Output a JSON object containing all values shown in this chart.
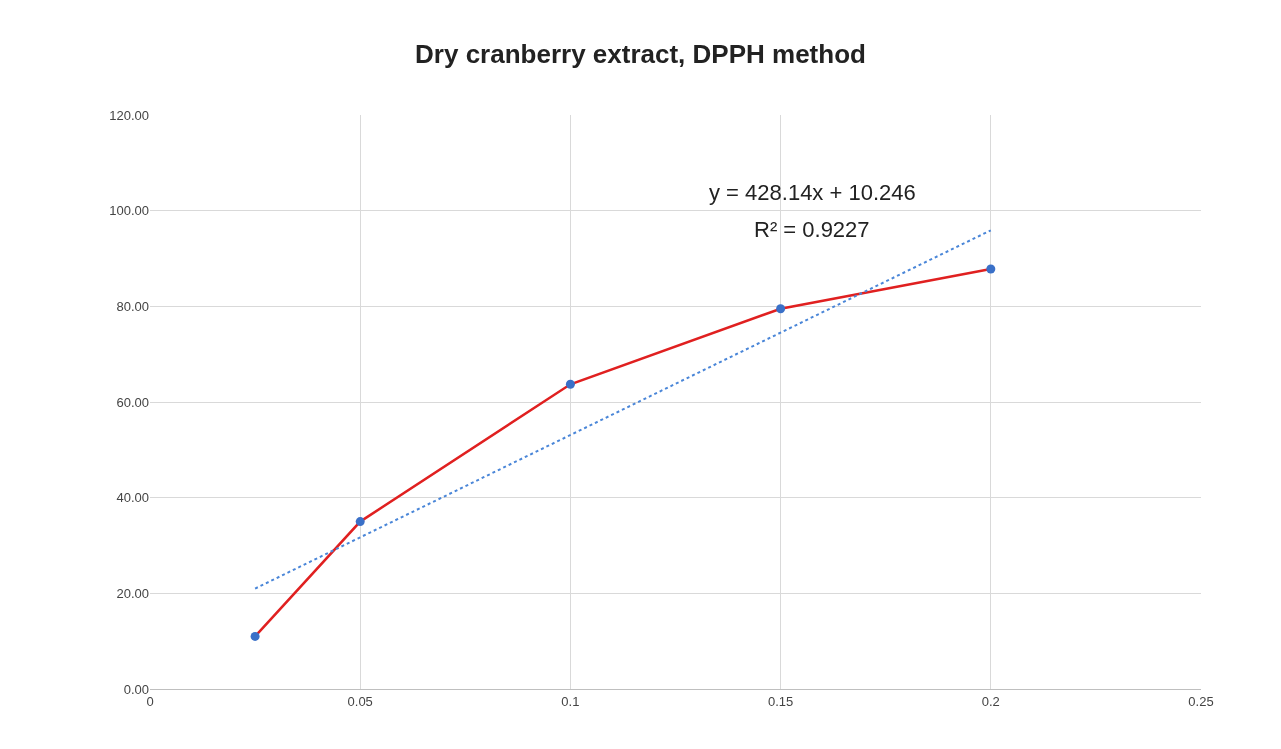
{
  "chart_data": {
    "type": "line",
    "title": "Dry cranberry extract, DPPH method",
    "x": [
      0.025,
      0.05,
      0.1,
      0.15,
      0.2
    ],
    "series": [
      {
        "color": "#e02020",
        "values": [
          11.0,
          35.0,
          63.7,
          79.5,
          87.8
        ],
        "marker": "none",
        "line_style": "solid"
      },
      {
        "type": "scatter",
        "color": "#3a70c8",
        "values": [
          11.0,
          35.0,
          63.7,
          79.5,
          87.8
        ],
        "marker": "circle"
      },
      {
        "color": "#4a86d8",
        "x": [
          0.025,
          0.2
        ],
        "values": [
          21.0,
          95.9
        ],
        "marker": "none",
        "line_style": "dotted"
      }
    ],
    "annotations": [
      "y = 428.14x + 10.246",
      "R² = 0.9227"
    ],
    "xlim": [
      0,
      0.25
    ],
    "xticks": [
      0,
      0.05,
      0.1,
      0.15,
      0.2,
      0.25
    ],
    "ylim": [
      0,
      120
    ],
    "yticks": [
      {
        "value": 0,
        "label": "0.00"
      },
      {
        "value": 20,
        "label": "20.00"
      },
      {
        "value": 40,
        "label": "40.00"
      },
      {
        "value": 60,
        "label": "60.00"
      },
      {
        "value": 80,
        "label": "80.00"
      },
      {
        "value": 100,
        "label": "100.00"
      },
      {
        "value": 120,
        "label": "120.00"
      }
    ],
    "grid": true
  }
}
